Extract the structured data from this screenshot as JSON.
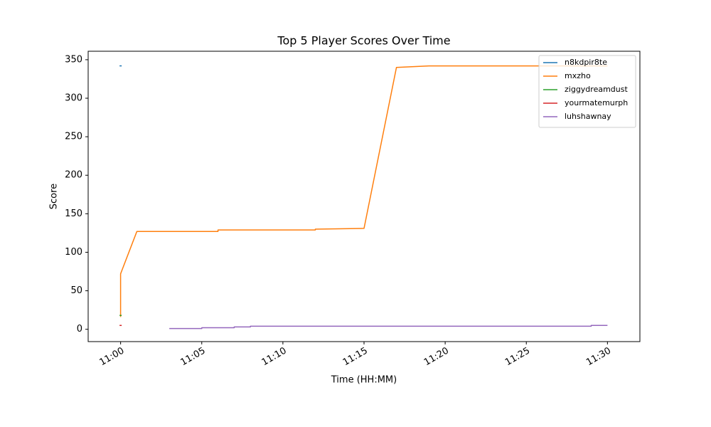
{
  "chart_data": {
    "type": "line",
    "title": "Top 5 Player Scores Over Time",
    "x_label": "Time (HH:MM)",
    "y_label": "Score",
    "xlim": [
      "10:58",
      "11:32"
    ],
    "xticks": [
      "11:00",
      "11:05",
      "11:10",
      "11:15",
      "11:20",
      "11:25",
      "11:30"
    ],
    "ylim": [
      -16,
      361
    ],
    "yticks": [
      0,
      50,
      100,
      150,
      200,
      250,
      300,
      350
    ],
    "grid": false,
    "legend": "upper right",
    "series": [
      {
        "name": "n8kdpir8te",
        "color": "#1f77b4",
        "x": [
          "11:00"
        ],
        "values": [
          342
        ]
      },
      {
        "name": "mxzho",
        "color": "#ff7f0e",
        "x": [
          "11:00",
          "11:00",
          "11:01",
          "11:06",
          "11:06",
          "11:12",
          "11:12",
          "11:15",
          "11:17",
          "11:19",
          "11:30"
        ],
        "values": [
          16,
          72,
          127,
          127,
          129,
          129,
          130,
          131,
          340,
          342,
          342
        ]
      },
      {
        "name": "ziggydreamdust",
        "color": "#2ca02c",
        "x": [
          "11:00"
        ],
        "values": [
          18
        ]
      },
      {
        "name": "yourmatemurph",
        "color": "#d62728",
        "x": [
          "11:00"
        ],
        "values": [
          5
        ]
      },
      {
        "name": "luhshawnay",
        "color": "#9467bd",
        "x": [
          "11:03",
          "11:05",
          "11:05",
          "11:07",
          "11:07",
          "11:08",
          "11:08",
          "11:29",
          "11:29",
          "11:30"
        ],
        "values": [
          1,
          1,
          2,
          2,
          3,
          3,
          4,
          4,
          5,
          5
        ]
      }
    ]
  }
}
